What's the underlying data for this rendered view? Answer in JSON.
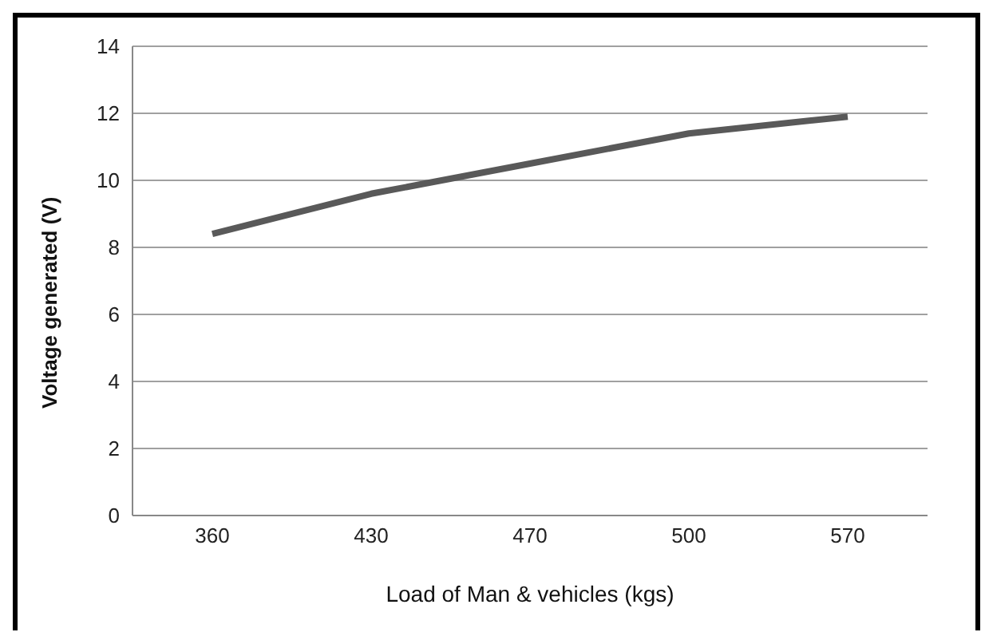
{
  "chart_data": {
    "type": "line",
    "xlabel": "Load of Man & vehicles (kgs)",
    "ylabel": "Voltage generated (V)",
    "categories": [
      "360",
      "430",
      "470",
      "500",
      "570"
    ],
    "series": [
      {
        "color": "#595959",
        "values": [
          8.4,
          9.6,
          10.5,
          11.4,
          11.9
        ]
      }
    ],
    "ylim": [
      0,
      14
    ],
    "yticks": [
      0,
      2,
      4,
      6,
      8,
      10,
      12,
      14
    ],
    "grid": "y",
    "marker": "none",
    "line_style": "solid"
  }
}
